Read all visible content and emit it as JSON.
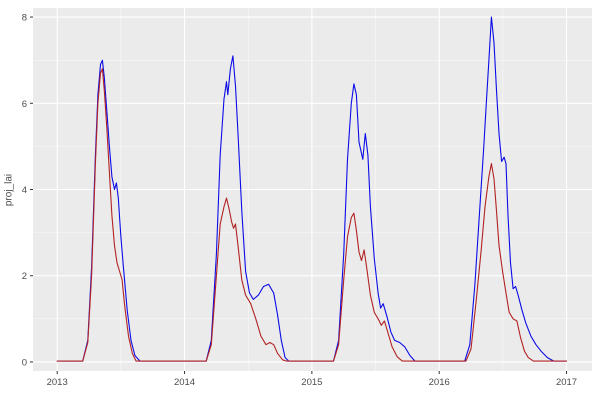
{
  "chart_data": {
    "type": "line",
    "title": "",
    "xlabel": "",
    "ylabel": "proj_lai",
    "xlim": [
      2012.81,
      2017.2
    ],
    "ylim": [
      -0.21,
      8.21
    ],
    "x_ticks": [
      2013,
      2014,
      2015,
      2016,
      2017
    ],
    "x_tick_labels": [
      "2013",
      "2014",
      "2015",
      "2016",
      "2017"
    ],
    "y_ticks": [
      0,
      2,
      4,
      6,
      8
    ],
    "y_tick_labels": [
      "0",
      "2",
      "4",
      "6",
      "8"
    ],
    "x_minor_ticks": [
      2013.5,
      2014.5,
      2015.5,
      2016.5
    ],
    "y_minor_ticks": [
      1,
      3,
      5,
      7
    ],
    "grid": true,
    "legend_position": "none",
    "panel_background": "#EBEBEB",
    "major_grid_color": "#FFFFFF",
    "minor_grid_color": "#FFFFFF",
    "tick_mark_color": "#333333",
    "tick_label_color": "#4d4d4d",
    "series": [
      {
        "name": "blue-series",
        "color": "#0B0BE8",
        "points": [
          [
            2013.0,
            0.02
          ],
          [
            2013.2,
            0.02
          ],
          [
            2013.24,
            0.5
          ],
          [
            2013.27,
            2.2
          ],
          [
            2013.3,
            4.8
          ],
          [
            2013.32,
            6.2
          ],
          [
            2013.34,
            6.9
          ],
          [
            2013.355,
            7.0
          ],
          [
            2013.37,
            6.6
          ],
          [
            2013.39,
            5.8
          ],
          [
            2013.41,
            5.0
          ],
          [
            2013.43,
            4.3
          ],
          [
            2013.45,
            4.0
          ],
          [
            2013.465,
            4.15
          ],
          [
            2013.48,
            3.8
          ],
          [
            2013.5,
            2.9
          ],
          [
            2013.52,
            2.2
          ],
          [
            2013.55,
            1.2
          ],
          [
            2013.58,
            0.5
          ],
          [
            2013.61,
            0.15
          ],
          [
            2013.65,
            0.02
          ],
          [
            2014.17,
            0.02
          ],
          [
            2014.21,
            0.5
          ],
          [
            2014.25,
            2.5
          ],
          [
            2014.28,
            4.8
          ],
          [
            2014.31,
            6.1
          ],
          [
            2014.33,
            6.5
          ],
          [
            2014.34,
            6.2
          ],
          [
            2014.36,
            6.8
          ],
          [
            2014.38,
            7.1
          ],
          [
            2014.4,
            6.4
          ],
          [
            2014.42,
            5.3
          ],
          [
            2014.45,
            3.5
          ],
          [
            2014.48,
            2.1
          ],
          [
            2014.51,
            1.6
          ],
          [
            2014.54,
            1.45
          ],
          [
            2014.58,
            1.55
          ],
          [
            2014.62,
            1.75
          ],
          [
            2014.66,
            1.8
          ],
          [
            2014.7,
            1.6
          ],
          [
            2014.73,
            1.1
          ],
          [
            2014.76,
            0.5
          ],
          [
            2014.79,
            0.1
          ],
          [
            2014.82,
            0.02
          ],
          [
            2015.17,
            0.02
          ],
          [
            2015.21,
            0.5
          ],
          [
            2015.25,
            2.5
          ],
          [
            2015.28,
            4.7
          ],
          [
            2015.31,
            6.0
          ],
          [
            2015.33,
            6.45
          ],
          [
            2015.35,
            6.2
          ],
          [
            2015.37,
            5.1
          ],
          [
            2015.4,
            4.7
          ],
          [
            2015.42,
            5.3
          ],
          [
            2015.44,
            4.8
          ],
          [
            2015.46,
            3.6
          ],
          [
            2015.49,
            2.4
          ],
          [
            2015.52,
            1.6
          ],
          [
            2015.54,
            1.25
          ],
          [
            2015.56,
            1.35
          ],
          [
            2015.59,
            1.05
          ],
          [
            2015.62,
            0.7
          ],
          [
            2015.65,
            0.5
          ],
          [
            2015.69,
            0.45
          ],
          [
            2015.73,
            0.35
          ],
          [
            2015.77,
            0.15
          ],
          [
            2015.81,
            0.02
          ],
          [
            2016.2,
            0.02
          ],
          [
            2016.24,
            0.4
          ],
          [
            2016.28,
            1.8
          ],
          [
            2016.32,
            3.6
          ],
          [
            2016.35,
            5.0
          ],
          [
            2016.37,
            6.0
          ],
          [
            2016.39,
            7.0
          ],
          [
            2016.41,
            8.0
          ],
          [
            2016.43,
            7.4
          ],
          [
            2016.45,
            6.3
          ],
          [
            2016.47,
            5.3
          ],
          [
            2016.49,
            4.65
          ],
          [
            2016.51,
            4.75
          ],
          [
            2016.525,
            4.6
          ],
          [
            2016.54,
            3.4
          ],
          [
            2016.56,
            2.3
          ],
          [
            2016.58,
            1.7
          ],
          [
            2016.6,
            1.75
          ],
          [
            2016.62,
            1.55
          ],
          [
            2016.65,
            1.2
          ],
          [
            2016.68,
            0.9
          ],
          [
            2016.72,
            0.6
          ],
          [
            2016.76,
            0.4
          ],
          [
            2016.8,
            0.25
          ],
          [
            2016.85,
            0.1
          ],
          [
            2016.9,
            0.02
          ],
          [
            2017.0,
            0.02
          ]
        ]
      },
      {
        "name": "red-series",
        "color": "#B22222",
        "points": [
          [
            2013.0,
            0.02
          ],
          [
            2013.2,
            0.02
          ],
          [
            2013.24,
            0.45
          ],
          [
            2013.27,
            2.0
          ],
          [
            2013.3,
            4.6
          ],
          [
            2013.32,
            6.0
          ],
          [
            2013.34,
            6.7
          ],
          [
            2013.355,
            6.8
          ],
          [
            2013.37,
            6.3
          ],
          [
            2013.39,
            5.4
          ],
          [
            2013.41,
            4.4
          ],
          [
            2013.43,
            3.4
          ],
          [
            2013.45,
            2.7
          ],
          [
            2013.47,
            2.3
          ],
          [
            2013.49,
            2.1
          ],
          [
            2013.51,
            1.9
          ],
          [
            2013.53,
            1.3
          ],
          [
            2013.56,
            0.6
          ],
          [
            2013.59,
            0.2
          ],
          [
            2013.62,
            0.02
          ],
          [
            2014.17,
            0.02
          ],
          [
            2014.21,
            0.4
          ],
          [
            2014.25,
            2.0
          ],
          [
            2014.28,
            3.2
          ],
          [
            2014.31,
            3.6
          ],
          [
            2014.33,
            3.8
          ],
          [
            2014.35,
            3.55
          ],
          [
            2014.37,
            3.25
          ],
          [
            2014.385,
            3.1
          ],
          [
            2014.4,
            3.2
          ],
          [
            2014.42,
            2.7
          ],
          [
            2014.45,
            1.9
          ],
          [
            2014.48,
            1.55
          ],
          [
            2014.52,
            1.35
          ],
          [
            2014.56,
            1.0
          ],
          [
            2014.6,
            0.6
          ],
          [
            2014.64,
            0.4
          ],
          [
            2014.67,
            0.45
          ],
          [
            2014.7,
            0.4
          ],
          [
            2014.73,
            0.2
          ],
          [
            2014.77,
            0.05
          ],
          [
            2014.8,
            0.02
          ],
          [
            2015.17,
            0.02
          ],
          [
            2015.21,
            0.4
          ],
          [
            2015.25,
            1.9
          ],
          [
            2015.28,
            2.9
          ],
          [
            2015.31,
            3.35
          ],
          [
            2015.33,
            3.45
          ],
          [
            2015.35,
            3.05
          ],
          [
            2015.37,
            2.55
          ],
          [
            2015.39,
            2.35
          ],
          [
            2015.41,
            2.6
          ],
          [
            2015.43,
            2.2
          ],
          [
            2015.46,
            1.55
          ],
          [
            2015.49,
            1.15
          ],
          [
            2015.52,
            1.0
          ],
          [
            2015.545,
            0.85
          ],
          [
            2015.57,
            0.95
          ],
          [
            2015.6,
            0.65
          ],
          [
            2015.63,
            0.35
          ],
          [
            2015.67,
            0.12
          ],
          [
            2015.71,
            0.02
          ],
          [
            2016.21,
            0.02
          ],
          [
            2016.25,
            0.3
          ],
          [
            2016.29,
            1.4
          ],
          [
            2016.33,
            2.6
          ],
          [
            2016.36,
            3.6
          ],
          [
            2016.39,
            4.3
          ],
          [
            2016.41,
            4.6
          ],
          [
            2016.43,
            4.25
          ],
          [
            2016.45,
            3.5
          ],
          [
            2016.47,
            2.7
          ],
          [
            2016.5,
            2.05
          ],
          [
            2016.53,
            1.5
          ],
          [
            2016.55,
            1.15
          ],
          [
            2016.58,
            1.0
          ],
          [
            2016.61,
            0.95
          ],
          [
            2016.64,
            0.55
          ],
          [
            2016.67,
            0.25
          ],
          [
            2016.7,
            0.1
          ],
          [
            2016.74,
            0.02
          ],
          [
            2017.0,
            0.02
          ]
        ]
      }
    ]
  }
}
